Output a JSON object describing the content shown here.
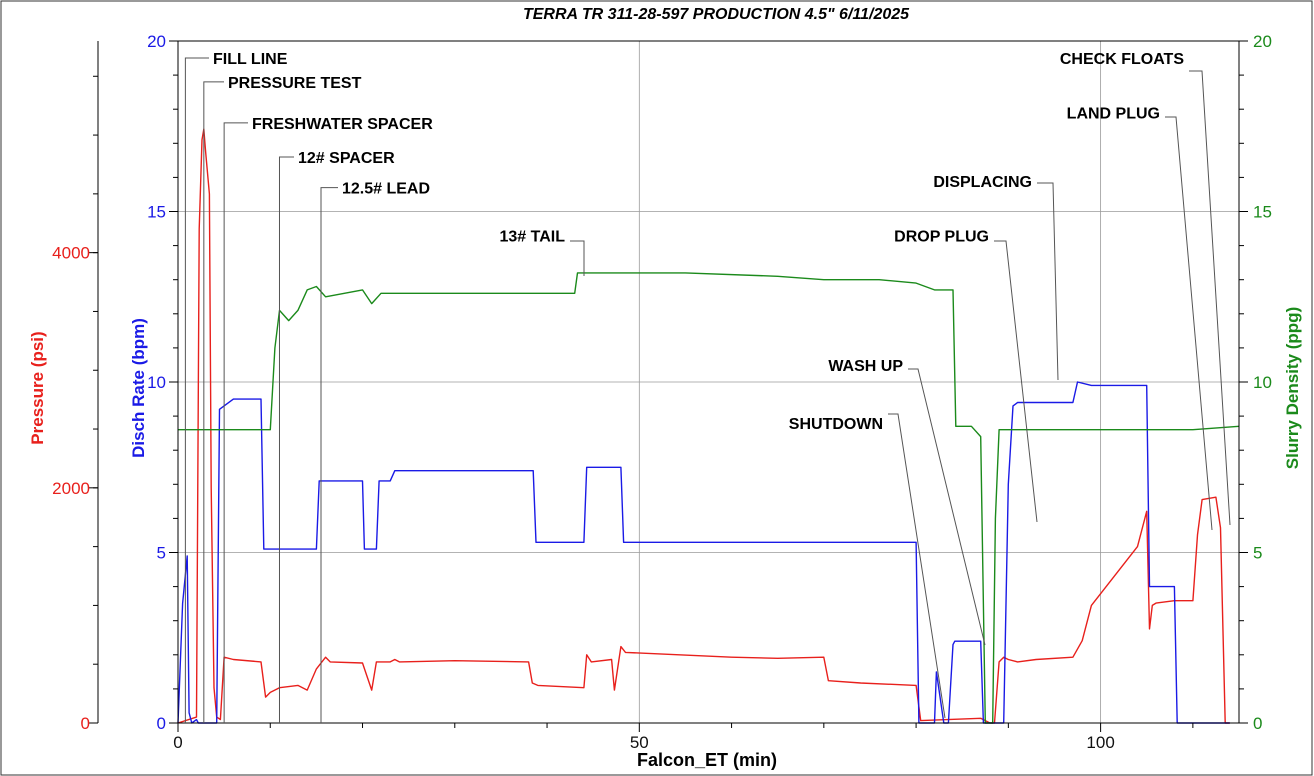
{
  "chart_data": {
    "type": "line",
    "title": "TERRA TR 311-28-597  PRODUCTION 4.5\" 6/11/2025",
    "xlabel": "Falcon_ET (min)",
    "xlim": [
      0,
      115
    ],
    "x_ticks": [
      "0",
      "50",
      "100"
    ],
    "x_tick_values": [
      0,
      50,
      100
    ],
    "grid": true,
    "axes": {
      "pressure": {
        "label": "Pressure (psi)",
        "color": "#e8201c",
        "ylim": [
          0,
          5800
        ],
        "ticks": [
          "0",
          "2000",
          "4000"
        ],
        "tick_values": [
          0,
          2000,
          4000
        ]
      },
      "rate": {
        "label": "Disch Rate (bpm)",
        "color": "#1a1ae6",
        "ylim": [
          0,
          20
        ],
        "ticks": [
          "0",
          "5",
          "10",
          "15",
          "20"
        ],
        "tick_values": [
          0,
          5,
          10,
          15,
          20
        ]
      },
      "density": {
        "label": "Slurry Density (ppg)",
        "color": "#1b8a1b",
        "ylim": [
          0,
          20
        ],
        "ticks": [
          "0",
          "5",
          "10",
          "15",
          "20"
        ],
        "tick_values": [
          0,
          5,
          10,
          15,
          20
        ]
      }
    },
    "series": [
      {
        "name": "Pressure (psi)",
        "axis": "pressure",
        "color": "#e8201c",
        "x": [
          0,
          2,
          2.3,
          2.6,
          2.8,
          3,
          3.4,
          3.6,
          3.9,
          4.2,
          4.6,
          5,
          6,
          9,
          9.5,
          10,
          11,
          13,
          14,
          15,
          16,
          16.5,
          20,
          21,
          21.5,
          23,
          23.5,
          24,
          30,
          38,
          38.4,
          39,
          44,
          44.3,
          44.8,
          47,
          47.3,
          48,
          48.5,
          60,
          65,
          70,
          70.5,
          74,
          80,
          80.5,
          87,
          88,
          88.5,
          89,
          89.5,
          90,
          91,
          93,
          97,
          98,
          99,
          100,
          102,
          104,
          105,
          105.3,
          105.6,
          106,
          108,
          110,
          110.5,
          111,
          112.5,
          113,
          113.5,
          114
        ],
        "y": [
          0,
          50,
          4200,
          4960,
          5050,
          4850,
          4500,
          2000,
          300,
          50,
          30,
          560,
          540,
          520,
          220,
          260,
          300,
          320,
          280,
          460,
          560,
          520,
          510,
          280,
          520,
          520,
          540,
          520,
          530,
          520,
          340,
          320,
          300,
          580,
          520,
          540,
          280,
          650,
          600,
          560,
          550,
          560,
          360,
          340,
          320,
          20,
          40,
          0,
          0,
          520,
          560,
          540,
          520,
          540,
          560,
          700,
          1000,
          1100,
          1300,
          1500,
          1800,
          800,
          1000,
          1020,
          1040,
          1040,
          1600,
          1900,
          1920,
          1660,
          0,
          0
        ]
      },
      {
        "name": "Disch Rate (bpm)",
        "axis": "rate",
        "color": "#1a1ae6",
        "x": [
          0,
          0.5,
          1,
          1.2,
          1.5,
          2,
          2.2,
          3.8,
          4.2,
          4.5,
          6,
          9,
          9.3,
          10,
          15,
          15.3,
          20,
          20.2,
          21.5,
          21.8,
          23,
          23.5,
          38.5,
          38.8,
          44,
          44.3,
          48,
          48.3,
          70,
          70.3,
          80,
          80.3,
          82,
          82.2,
          83,
          83.5,
          84,
          84.2,
          87,
          87.3,
          89,
          89.5,
          90,
          90.5,
          91,
          97,
          97.5,
          99,
          105,
          105.3,
          108,
          108.3,
          110,
          110.5,
          112,
          114
        ],
        "y": [
          0,
          3.5,
          4.9,
          0.3,
          0,
          0.1,
          0,
          0,
          0,
          9.2,
          9.5,
          9.5,
          5.1,
          5.1,
          5.1,
          7.1,
          7.1,
          5.1,
          5.1,
          7.1,
          7.1,
          7.4,
          7.4,
          5.3,
          5.3,
          7.5,
          7.5,
          5.3,
          5.3,
          5.3,
          5.3,
          0,
          0,
          1.5,
          0,
          0,
          2.3,
          2.4,
          2.4,
          0,
          0,
          0,
          7,
          9.3,
          9.4,
          9.4,
          10,
          9.9,
          9.9,
          4,
          4,
          0,
          0,
          0,
          0,
          0
        ]
      },
      {
        "name": "Slurry Density (ppg)",
        "axis": "density",
        "color": "#1b8a1b",
        "x": [
          0,
          5,
          10,
          10.5,
          11,
          12,
          13,
          14,
          15,
          16,
          20,
          21,
          22,
          30,
          36,
          40,
          43,
          43.3,
          46,
          50,
          55,
          65,
          70,
          76,
          80,
          82,
          84,
          84.3,
          86,
          87,
          87.5,
          88,
          88.3,
          88.6,
          89,
          89.5,
          95,
          100,
          105,
          110,
          115
        ],
        "y": [
          8.6,
          8.6,
          8.6,
          11,
          12.1,
          11.8,
          12.1,
          12.7,
          12.8,
          12.5,
          12.7,
          12.3,
          12.6,
          12.6,
          12.6,
          12.6,
          12.6,
          13.2,
          13.2,
          13.2,
          13.2,
          13.1,
          13.0,
          13.0,
          12.9,
          12.7,
          12.7,
          8.7,
          8.7,
          8.4,
          0,
          0,
          0,
          6,
          8.6,
          8.6,
          8.6,
          8.6,
          8.6,
          8.6,
          8.7
        ]
      }
    ],
    "annotations": [
      {
        "text": "FILL LINE",
        "x": 0.8,
        "axis": "rate",
        "y": 19.5
      },
      {
        "text": "PRESSURE TEST",
        "x": 2.8,
        "axis": "rate",
        "y": 18.8
      },
      {
        "text": "FRESHWATER SPACER",
        "x": 5,
        "axis": "rate",
        "y": 17.6
      },
      {
        "text": "12# SPACER",
        "x": 11,
        "axis": "rate",
        "y": 16.6
      },
      {
        "text": "12.5# LEAD",
        "x": 15.5,
        "axis": "rate",
        "y": 15.7
      },
      {
        "text": "13# TAIL",
        "x": 43.3,
        "axis": "rate",
        "y": 14.3
      },
      {
        "text": "WASH UP",
        "x": 84,
        "axis": "rate",
        "y": 10.5
      },
      {
        "text": "SHUTDOWN",
        "x": 80.3,
        "axis": "rate",
        "y": 8.8
      },
      {
        "text": "DROP PLUG",
        "x": 88.5,
        "axis": "rate",
        "y": 14.3
      },
      {
        "text": "DISPLACING",
        "x": 95,
        "axis": "rate",
        "y": 15.9
      },
      {
        "text": "LAND PLUG",
        "x": 110.2,
        "axis": "rate",
        "y": 17.9
      },
      {
        "text": "CHECK FLOATS",
        "x": 112,
        "axis": "rate",
        "y": 19.5
      }
    ]
  }
}
